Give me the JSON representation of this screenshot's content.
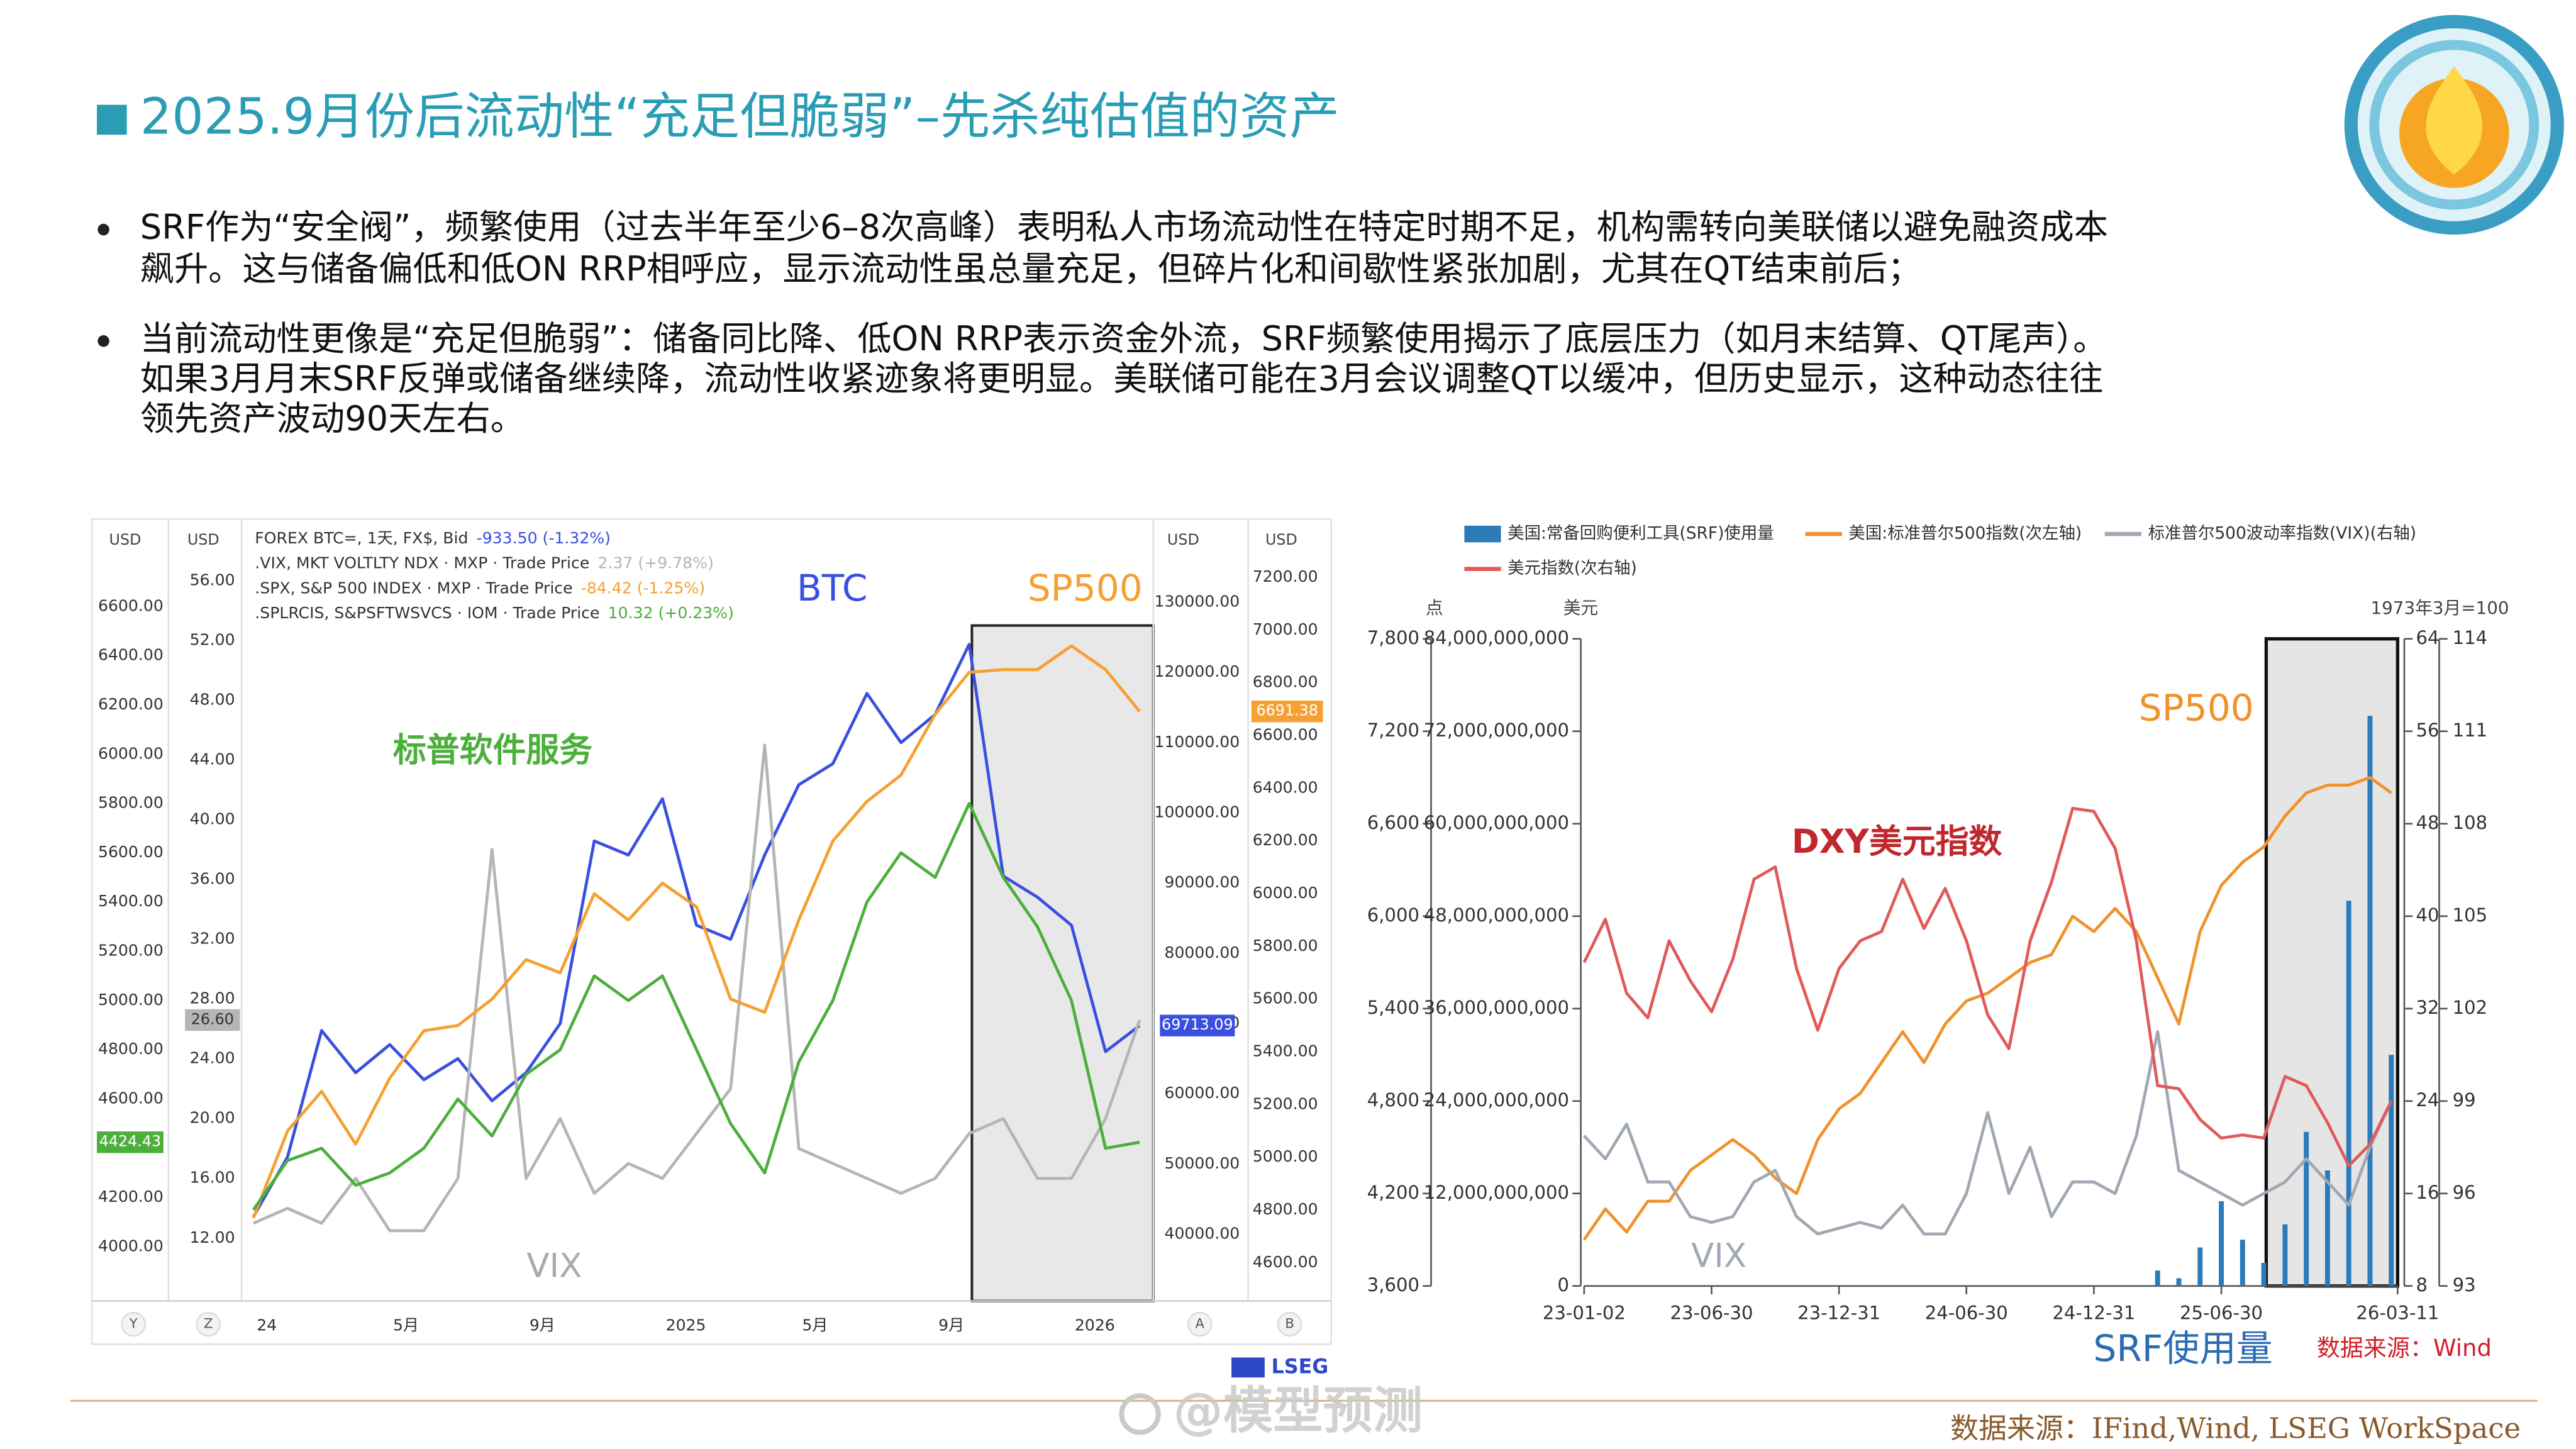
{
  "title": "2025.9月份后流动性“充足但脆弱”–先杀纯估值的资产",
  "bullets": [
    [
      "SRF作为“安全阀”，频繁使用（过去半年至少6–8次高峰）表明私人市场流动性在特定时期不足，机构需转向美联储以避免融资成本",
      "飙升。这与储备偏低和低ON RRP相呼应，显示流动性虽总量充足，但碎片化和间歇性紧张加剧，尤其在QT结束前后；"
    ],
    [
      "当前流动性更像是“充足但脆弱”：储备同比降、低ON RRP表示资金外流，SRF频繁使用揭示了底层压力（如月末结算、QT尾声）。",
      "如果3月月末SRF反弹或储备继续降，流动性收紧迹象将更明显。美联储可能在3月会议调整QT以缓冲，但历史显示，这种动态往往",
      "领先资产波动90天左右。"
    ]
  ],
  "chart_data": [
    {
      "type": "line",
      "axis_titles": {
        "y": "USD",
        "y3": "USD",
        "y4": "USD",
        "y2": "USD"
      },
      "buttons": [
        "Y",
        "Z",
        "A",
        "B"
      ],
      "provider": "LSEG",
      "x": [
        0,
        1,
        2,
        3,
        4,
        5,
        6,
        7,
        8,
        9,
        10,
        11,
        12,
        13,
        14,
        15,
        16,
        17,
        18,
        19,
        20,
        21,
        22,
        23,
        24,
        25,
        26
      ],
      "xlim": [
        -0.25,
        26.4
      ],
      "xticks": [
        {
          "value": 0,
          "label": "24"
        },
        {
          "value": 4,
          "label": "5月"
        },
        {
          "value": 8,
          "label": "9月"
        },
        {
          "value": 12,
          "label": "2025"
        },
        {
          "value": 16,
          "label": "5月"
        },
        {
          "value": 20,
          "label": "9月"
        },
        {
          "value": 24,
          "label": "2026"
        }
      ],
      "ylim": [
        3780,
        6820
      ],
      "yticks": [
        {
          "value": 4000,
          "label": "4000.00"
        },
        {
          "value": 4200,
          "label": "4200.00"
        },
        {
          "value": 4400,
          "label": "4400.00"
        },
        {
          "value": 4600,
          "label": "4600.00"
        },
        {
          "value": 4800,
          "label": "4800.00"
        },
        {
          "value": 5000,
          "label": "5000.00"
        },
        {
          "value": 5200,
          "label": "5200.00"
        },
        {
          "value": 5400,
          "label": "5400.00"
        },
        {
          "value": 5600,
          "label": "5600.00"
        },
        {
          "value": 5800,
          "label": "5800.00"
        },
        {
          "value": 6000,
          "label": "6000.00"
        },
        {
          "value": 6200,
          "label": "6200.00"
        },
        {
          "value": 6400,
          "label": "6400.00"
        },
        {
          "value": 6600,
          "label": "6600.00"
        }
      ],
      "y3lim": [
        7.8,
        57.9
      ],
      "y3ticks": [
        {
          "value": 12,
          "label": "12.00"
        },
        {
          "value": 16,
          "label": "16.00"
        },
        {
          "value": 20,
          "label": "20.00"
        },
        {
          "value": 24,
          "label": "24.00"
        },
        {
          "value": 28,
          "label": "28.00"
        },
        {
          "value": 32,
          "label": "32.00"
        },
        {
          "value": 36,
          "label": "36.00"
        },
        {
          "value": 40,
          "label": "40.00"
        },
        {
          "value": 44,
          "label": "44.00"
        },
        {
          "value": 48,
          "label": "48.00"
        },
        {
          "value": 52,
          "label": "52.00"
        },
        {
          "value": 56,
          "label": "56.00"
        }
      ],
      "y4lim": [
        30500,
        137100
      ],
      "y4ticks": [
        {
          "value": 40000,
          "label": "40000.00"
        },
        {
          "value": 50000,
          "label": "50000.00"
        },
        {
          "value": 60000,
          "label": "60000.00"
        },
        {
          "value": 70000,
          "label": "70000.00"
        },
        {
          "value": 80000,
          "label": "80000.00"
        },
        {
          "value": 90000,
          "label": "90000.00"
        },
        {
          "value": 100000,
          "label": "100000.00"
        },
        {
          "value": 110000,
          "label": "110000.00"
        },
        {
          "value": 120000,
          "label": "120000.00"
        },
        {
          "value": 130000,
          "label": "130000.00"
        }
      ],
      "y2lim": [
        4455,
        7295
      ],
      "y2ticks": [
        {
          "value": 4600,
          "label": "4600.00"
        },
        {
          "value": 4800,
          "label": "4800.00"
        },
        {
          "value": 5000,
          "label": "5000.00"
        },
        {
          "value": 5200,
          "label": "5200.00"
        },
        {
          "value": 5400,
          "label": "5400.00"
        },
        {
          "value": 5600,
          "label": "5600.00"
        },
        {
          "value": 5800,
          "label": "5800.00"
        },
        {
          "value": 6000,
          "label": "6000.00"
        },
        {
          "value": 6200,
          "label": "6200.00"
        },
        {
          "value": 6400,
          "label": "6400.00"
        },
        {
          "value": 6600,
          "label": "6600.00"
        },
        {
          "value": 6800,
          "label": "6800.00"
        },
        {
          "value": 7000,
          "label": "7000.00"
        },
        {
          "value": 7200,
          "label": "7200.00"
        }
      ],
      "series": [
        {
          "name": "FOREX BTC=, 1天, FX$, Bid",
          "change": "-933.50 (-1.32%)",
          "color": "#3a4fe0",
          "axis": "y4",
          "badge": "69713.09",
          "values": [
            42500,
            51000,
            69000,
            63000,
            67000,
            62000,
            65000,
            59000,
            63000,
            70000,
            96000,
            94000,
            102000,
            84000,
            82000,
            94000,
            104000,
            107000,
            117000,
            110000,
            114000,
            124000,
            91000,
            88000,
            84000,
            66000,
            69713.09
          ]
        },
        {
          "name": ".VIX, MKT VOLTLTY NDX · MXP · Trade Price",
          "change": "2.37 (+9.78%)",
          "color": "#b5b5b5",
          "axis": "y3",
          "badge": "26.60",
          "values": [
            13,
            14,
            13,
            16,
            12.5,
            12.5,
            16,
            38,
            16,
            20,
            15,
            17,
            16,
            19,
            22,
            45,
            18,
            17,
            16,
            15,
            16,
            19,
            20,
            16,
            16,
            20,
            26.6
          ]
        },
        {
          "name": ".SPX, S&P 500 INDEX · MXP · Trade Price",
          "change": "-84.42 (-1.25%)",
          "color": "#f5a030",
          "axis": "y2",
          "badge": "6691.38",
          "values": [
            4770,
            5100,
            5250,
            5050,
            5300,
            5480,
            5500,
            5600,
            5750,
            5700,
            6000,
            5900,
            6040,
            5950,
            5600,
            5550,
            5900,
            6200,
            6350,
            6450,
            6680,
            6840,
            6850,
            6850,
            6940,
            6850,
            6691.38
          ]
        },
        {
          "name": ".SPLRCIS, S&PSFTWSVCS · IOM · Trade Price",
          "change": "10.32 (+0.23%)",
          "color": "#4caf3c",
          "axis": "y",
          "badge": "4424.43",
          "values": [
            4150,
            4350,
            4400,
            4250,
            4300,
            4400,
            4600,
            4450,
            4700,
            4800,
            5100,
            5000,
            5100,
            4800,
            4500,
            4300,
            4750,
            5000,
            5400,
            5600,
            5500,
            5800,
            5500,
            5300,
            5000,
            4400,
            4424.43
          ]
        }
      ],
      "annotations": [
        {
          "text": "BTC",
          "color": "#3a4fe0"
        },
        {
          "text": "SP500",
          "color": "#f5a030"
        },
        {
          "text": "标普软件服务",
          "color": "#4caf3c"
        },
        {
          "text": "VIX",
          "color": "#aaaaaa"
        }
      ]
    },
    {
      "type": "combo",
      "axis_titles": {
        "y3": "点",
        "y": "美元",
        "y4": "1973年3月=100"
      },
      "x": [
        0,
        1,
        2,
        3,
        4,
        5,
        6,
        7,
        8,
        9,
        10,
        11,
        12,
        13,
        14,
        15,
        16,
        17,
        18,
        19,
        20,
        21,
        22,
        23,
        24,
        25,
        26,
        27,
        28,
        29,
        30,
        31,
        32,
        33,
        34,
        35,
        36,
        37,
        38
      ],
      "xlim": [
        0,
        38.3
      ],
      "xticks": [
        {
          "value": 0,
          "label": "23-01-02"
        },
        {
          "value": 6,
          "label": "23-06-30"
        },
        {
          "value": 12,
          "label": "23-12-31"
        },
        {
          "value": 18,
          "label": "24-06-30"
        },
        {
          "value": 24,
          "label": "24-12-31"
        },
        {
          "value": 30,
          "label": "25-06-30"
        },
        {
          "value": 38.3,
          "label": "26-03-11"
        }
      ],
      "ylim": [
        0,
        84000000000
      ],
      "yticks": [
        0,
        {
          "value": 12000000000,
          "label": "12,000,000,000"
        },
        {
          "value": 24000000000,
          "label": "24,000,000,000"
        },
        {
          "value": 36000000000,
          "label": "36,000,000,000"
        },
        {
          "value": 48000000000,
          "label": "48,000,000,000"
        },
        {
          "value": 60000000000,
          "label": "60,000,000,000"
        },
        {
          "value": 72000000000,
          "label": "72,000,000,000"
        },
        {
          "value": 84000000000,
          "label": "84,000,000,000"
        }
      ],
      "y3lim": [
        3600,
        7800
      ],
      "y3ticks": [
        {
          "value": 3600,
          "label": "3,600"
        },
        {
          "value": 4200,
          "label": "4,200"
        },
        {
          "value": 4800,
          "label": "4,800"
        },
        {
          "value": 5400,
          "label": "5,400"
        },
        {
          "value": 6000,
          "label": "6,000"
        },
        {
          "value": 6600,
          "label": "6,600"
        },
        {
          "value": 7200,
          "label": "7,200"
        },
        {
          "value": 7800,
          "label": "7,800"
        }
      ],
      "y2lim": [
        8,
        64
      ],
      "y2ticks": [
        8,
        16,
        24,
        32,
        40,
        48,
        56,
        64
      ],
      "y4lim": [
        93,
        114
      ],
      "y4ticks": [
        93,
        96,
        99,
        102,
        105,
        108,
        111,
        114
      ],
      "series": [
        {
          "name": "美国:常备回购便利工具(SRF)使用量",
          "type": "bar",
          "color": "#2b7bb9",
          "axis": "y",
          "values": [
            0,
            0,
            0,
            0,
            0,
            0,
            0,
            0,
            0,
            0,
            0,
            0,
            0,
            0,
            0,
            0,
            0,
            0,
            0,
            0,
            0,
            0,
            0,
            0,
            0,
            0,
            0,
            2000000000,
            1000000000,
            5000000000,
            11000000000,
            6000000000,
            3000000000,
            8000000000,
            20000000000,
            15000000000,
            50000000000,
            74000000000,
            30000000000
          ]
        },
        {
          "name": "美国:标准普尔500指数(次左轴)",
          "type": "line",
          "color": "#f0922b",
          "axis": "y3",
          "values": [
            3900,
            4100,
            3950,
            4150,
            4150,
            4350,
            4450,
            4550,
            4450,
            4300,
            4200,
            4550,
            4750,
            4850,
            5050,
            5250,
            5050,
            5300,
            5450,
            5500,
            5600,
            5700,
            5750,
            6000,
            5900,
            6050,
            5900,
            5600,
            5300,
            5900,
            6200,
            6350,
            6450,
            6650,
            6800,
            6850,
            6850,
            6900,
            6800
          ]
        },
        {
          "name": "标准普尔500波动率指数(VIX)(右轴)",
          "type": "line",
          "color": "#a0a8b4",
          "axis": "y2",
          "values": [
            21,
            19,
            22,
            17,
            17,
            14,
            13.5,
            14,
            17,
            18,
            14,
            12.5,
            13,
            13.5,
            13,
            15,
            12.5,
            12.5,
            16,
            23,
            16,
            20,
            14,
            17,
            17,
            16,
            21,
            30,
            18,
            17,
            16,
            15,
            16,
            17,
            19,
            17,
            15,
            20,
            24
          ]
        },
        {
          "name": "美元指数(次右轴)",
          "type": "line",
          "color": "#e05a5a",
          "axis": "y4",
          "values": [
            103.5,
            104.9,
            102.5,
            101.7,
            104.2,
            102.9,
            101.9,
            103.6,
            106.2,
            106.6,
            103.3,
            101.3,
            103.3,
            104.2,
            104.5,
            106.2,
            104.6,
            105.9,
            104.2,
            101.8,
            100.7,
            104.2,
            106.1,
            108.5,
            108.4,
            107.2,
            104.2,
            99.5,
            99.4,
            98.4,
            97.8,
            97.9,
            97.8,
            99.8,
            99.5,
            98.3,
            96.9,
            97.6,
            99.0
          ]
        }
      ],
      "annotations": [
        {
          "text": "SP500",
          "color": "#f0922b"
        },
        {
          "text": "DXY美元指数",
          "color": "#c0282d"
        },
        {
          "text": "VIX",
          "color": "#a0a8b4"
        },
        {
          "text": "SRF使用量",
          "color": "#2b6cb0"
        },
        {
          "text": "数据来源：Wind",
          "color": "#d0202a"
        }
      ]
    }
  ],
  "watermark": "@模型预测",
  "source": "数据来源：IFind,Wind, LSEG WorkSpace"
}
